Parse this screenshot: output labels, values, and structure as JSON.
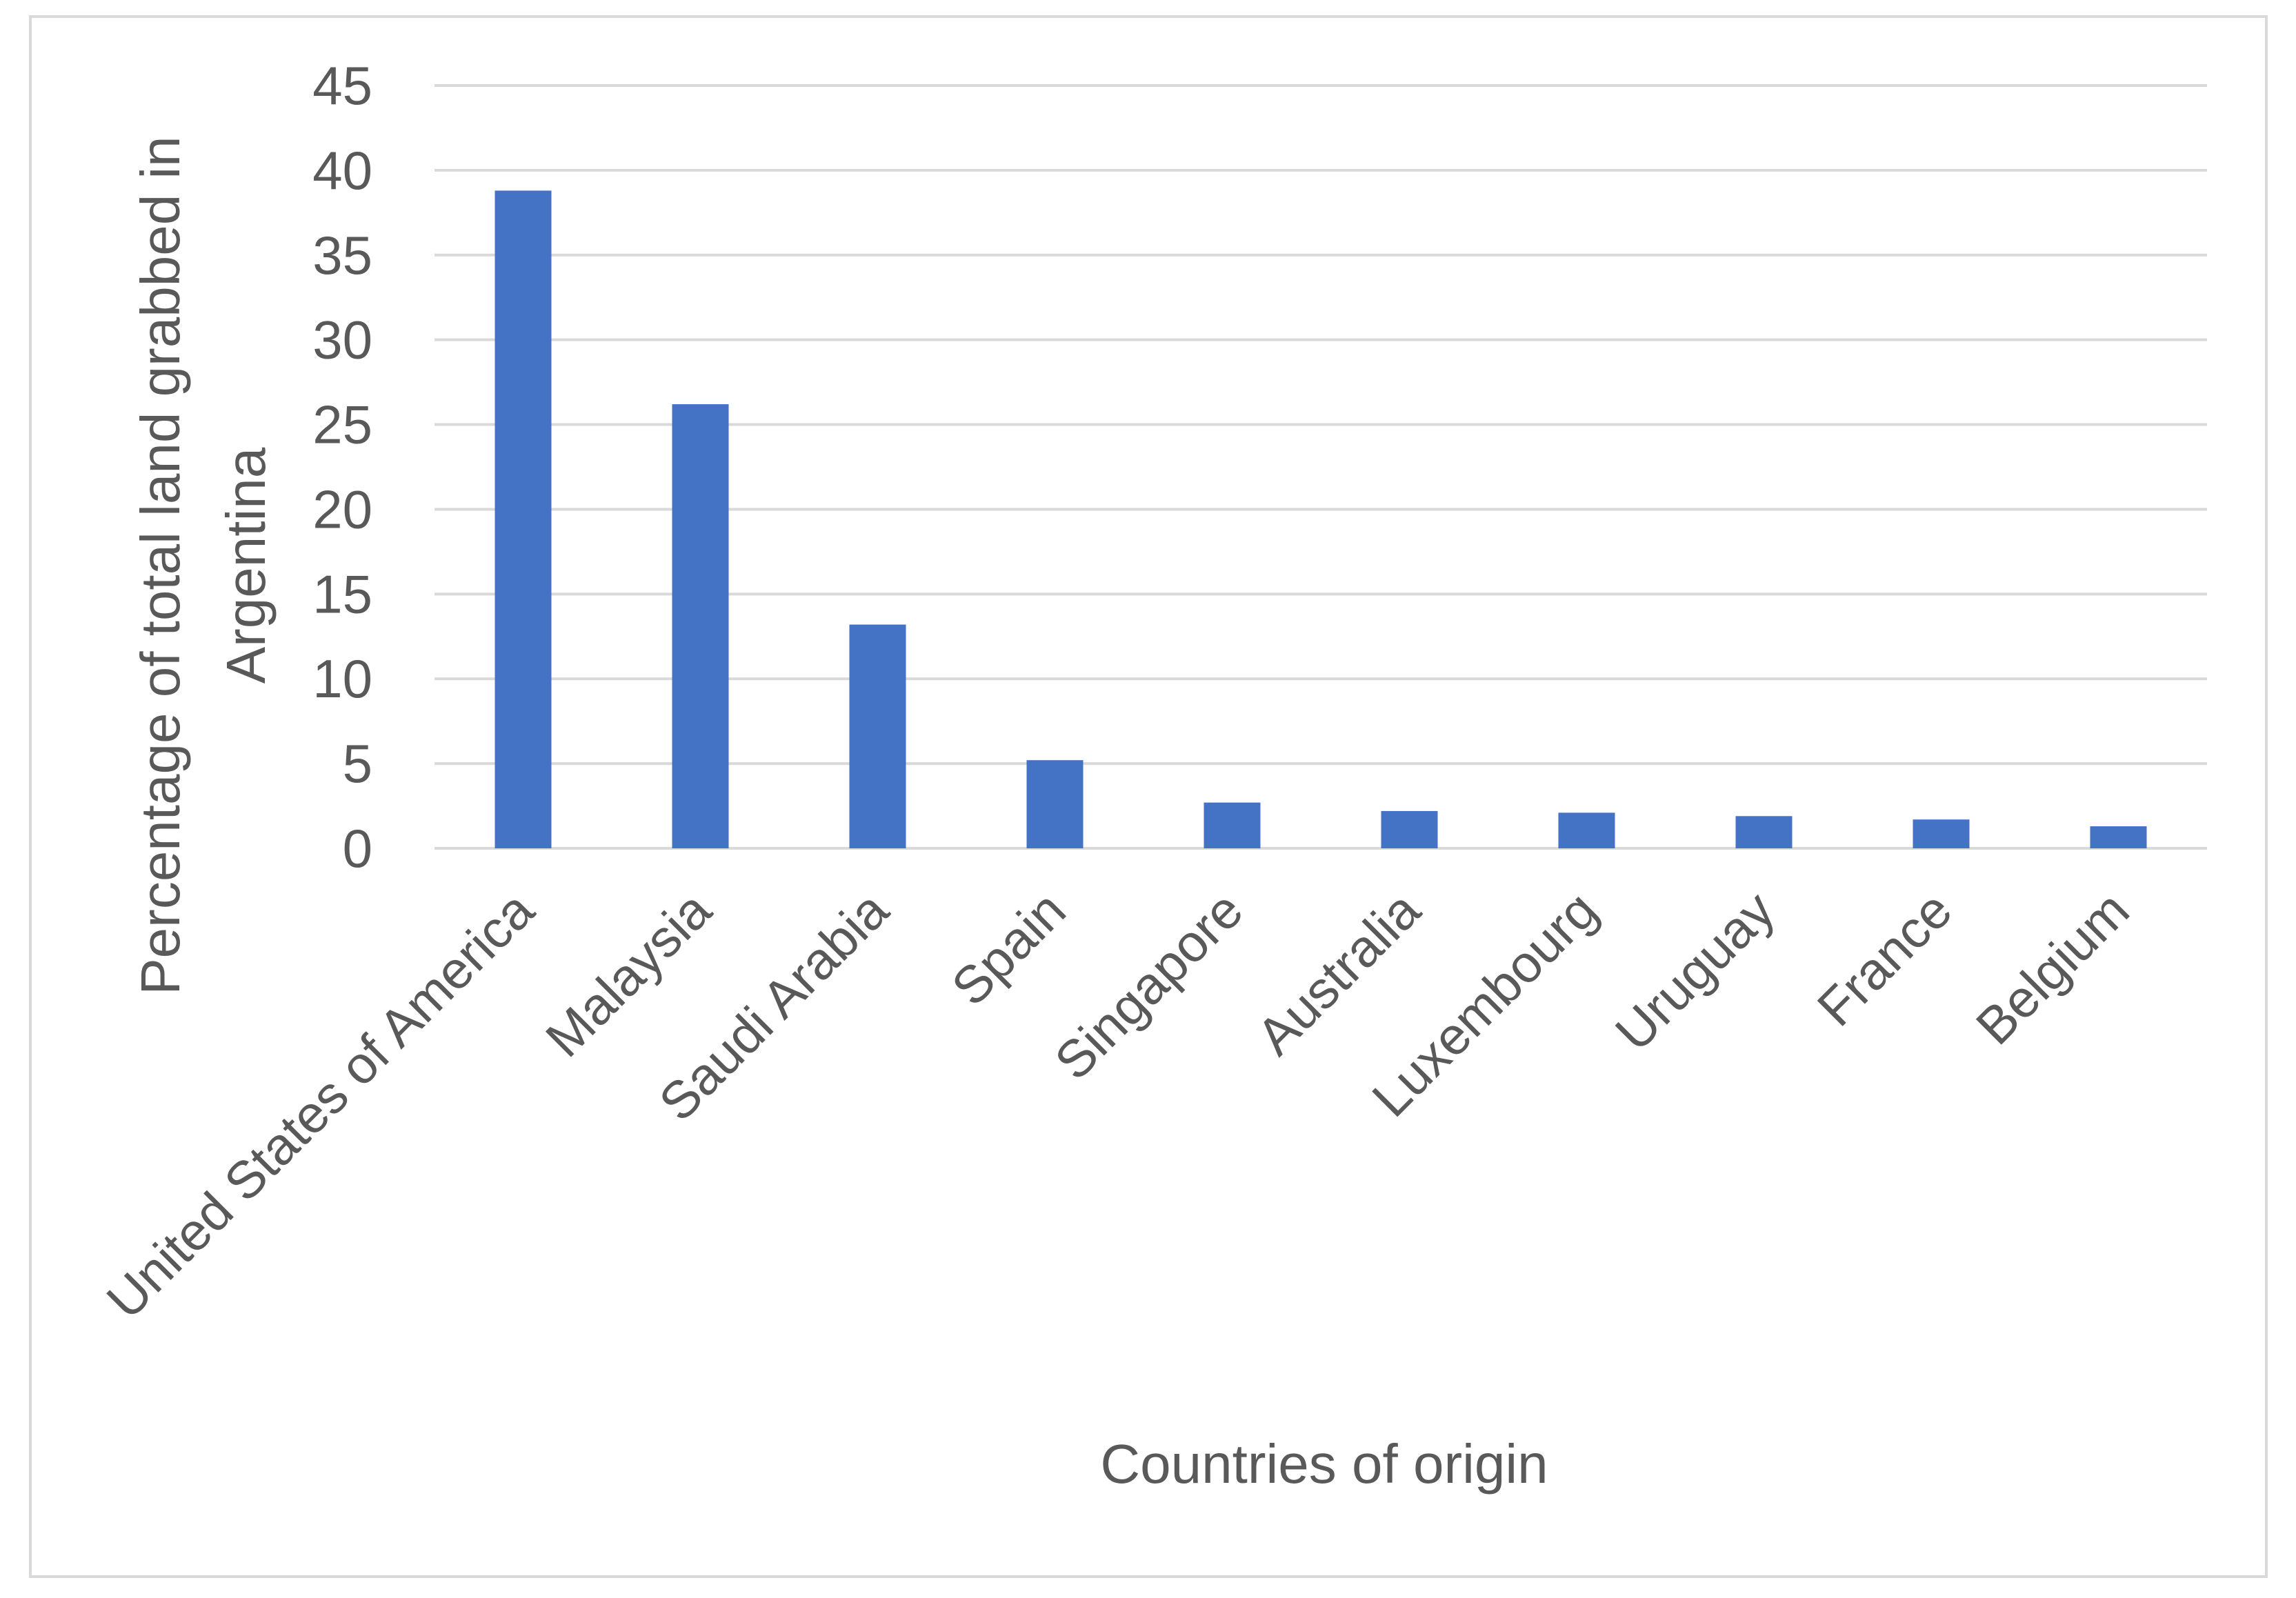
{
  "chart_data": {
    "type": "bar",
    "title": "",
    "xlabel": "Countries of origin",
    "ylabel": "Percentage of total land grabbed in Argentina",
    "ylabel_lines": [
      "Percentage of total land grabbed in",
      "Argentina"
    ],
    "ylim": [
      0,
      45
    ],
    "yticks": [
      0,
      5,
      10,
      15,
      20,
      25,
      30,
      35,
      40,
      45
    ],
    "grid": true,
    "legend": "none",
    "bar_color": "#4472C4",
    "grid_color": "#d9d9d9",
    "categories": [
      "United States of America",
      "Malaysia",
      "Saudi Arabia",
      "Spain",
      "Singapore",
      "Australia",
      "Luxembourg",
      "Uruguay",
      "France",
      "Belgium"
    ],
    "values": [
      38.8,
      26.2,
      13.2,
      5.2,
      2.7,
      2.2,
      2.1,
      1.9,
      1.7,
      1.3
    ]
  }
}
